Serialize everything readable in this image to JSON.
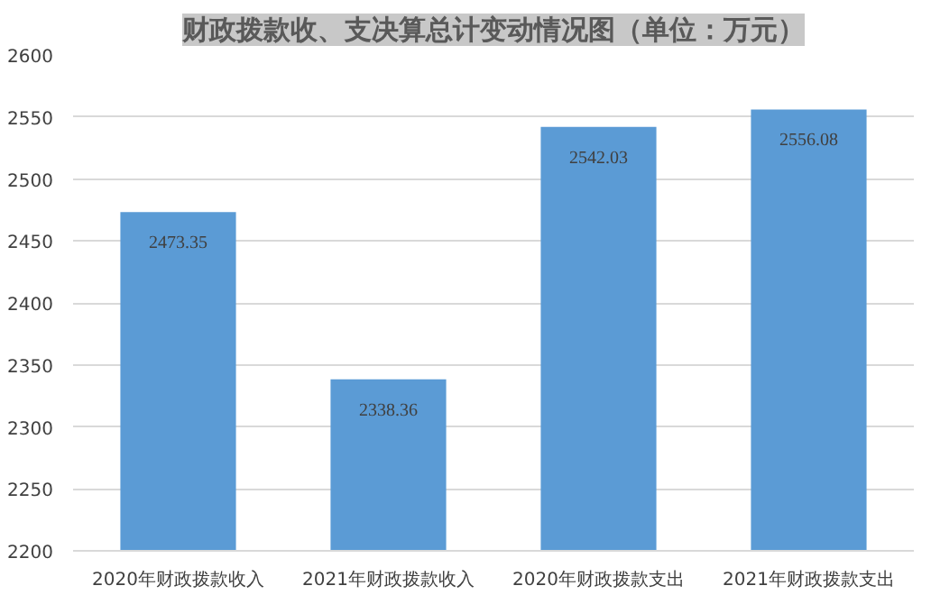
{
  "chart_data": {
    "type": "bar",
    "title": "财政拨款收、支决算总计变动情况图（单位：万元）",
    "categories": [
      "2020年财政拨款收入",
      "2021年财政拨款收入",
      "2020年财政拨款支出",
      "2021年财政拨款支出"
    ],
    "values": [
      2473.35,
      2338.36,
      2542.03,
      2556.08
    ],
    "value_labels": [
      "2473.35",
      "2338.36",
      "2542.03",
      "2556.08"
    ],
    "color": "#5b9bd5",
    "ylim": [
      2200,
      2600
    ],
    "yticks": [
      2200,
      2250,
      2300,
      2350,
      2400,
      2450,
      2500,
      2550,
      2600
    ],
    "grid": "y"
  }
}
